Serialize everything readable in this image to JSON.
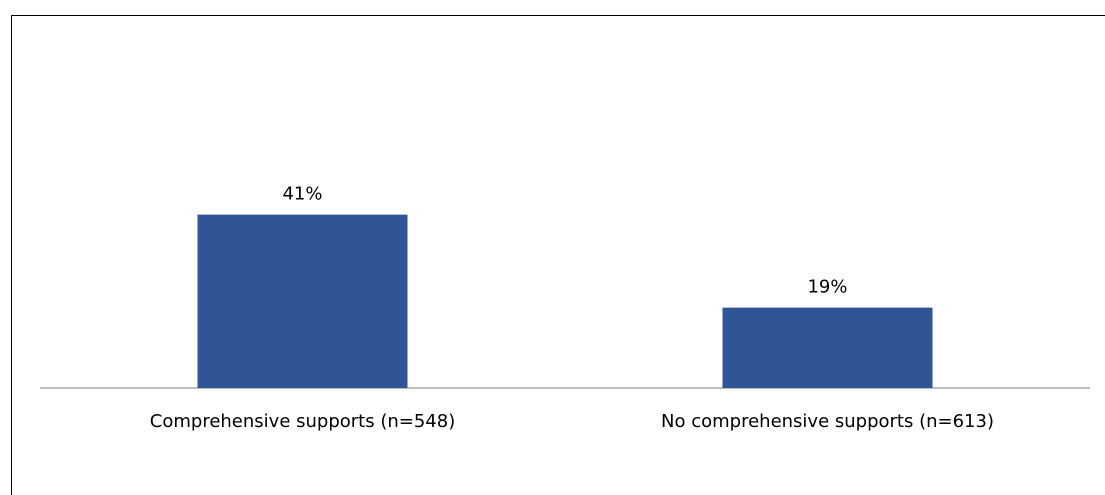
{
  "chart_data": {
    "type": "bar",
    "categories": [
      "Comprehensive supports (n=548)",
      "No comprehensive supports (n=613)"
    ],
    "values": [
      41,
      19
    ],
    "value_labels": [
      "41%",
      "19%"
    ],
    "title": "",
    "xlabel": "",
    "ylabel": "",
    "ylim": [
      0,
      70
    ],
    "grid": false,
    "legend": "none",
    "colors": {
      "bar": "#2F5597",
      "axis": "#A6A6A6",
      "text": "#000000"
    }
  }
}
